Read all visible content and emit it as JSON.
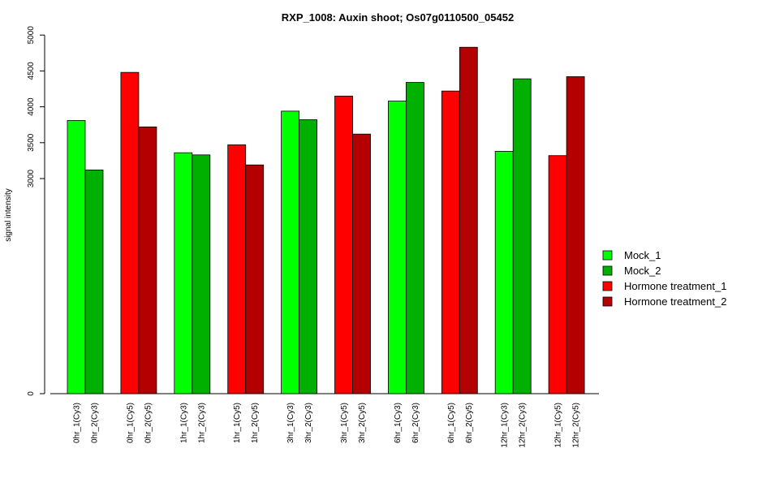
{
  "chart_data": {
    "type": "bar",
    "title": "RXP_1008: Auxin shoot; Os07g0110500_05452",
    "xlabel": "",
    "ylabel": "signal intensity",
    "y_scale": "nonlinear (compressed below 3000)",
    "y_ticks": [
      0,
      3000,
      3500,
      4000,
      4500,
      5000
    ],
    "ylim": [
      0,
      5000
    ],
    "grid": false,
    "legend_position": "right",
    "categories": [
      "0hr_1(Cy3)",
      "0hr_2(Cy3)",
      "0hr_1(Cy5)",
      "0hr_2(Cy5)",
      "1hr_1(Cy3)",
      "1hr_2(Cy3)",
      "1hr_1(Cy5)",
      "1hr_2(Cy5)",
      "3hr_1(Cy3)",
      "3hr_2(Cy3)",
      "3hr_1(Cy5)",
      "3hr_2(Cy5)",
      "6hr_1(Cy3)",
      "6hr_2(Cy3)",
      "6hr_1(Cy5)",
      "6hr_2(Cy5)",
      "12hr_1(Cy3)",
      "12hr_2(Cy3)",
      "12hr_1(Cy5)",
      "12hr_2(Cy5)"
    ],
    "values": [
      3810,
      3120,
      4480,
      3720,
      3360,
      3330,
      3470,
      3190,
      3940,
      3820,
      4150,
      3620,
      4080,
      4340,
      4220,
      4830,
      3380,
      4390,
      3320,
      4420
    ],
    "bar_series": [
      0,
      1,
      2,
      3,
      0,
      1,
      2,
      3,
      0,
      1,
      2,
      3,
      0,
      1,
      2,
      3,
      0,
      1,
      2,
      3
    ],
    "series": [
      {
        "name": "Mock_1",
        "color": "#00ff00"
      },
      {
        "name": "Mock_2",
        "color": "#00b000"
      },
      {
        "name": "Hormone treatment_1",
        "color": "#ff0000"
      },
      {
        "name": "Hormone treatment_2",
        "color": "#b40000"
      }
    ]
  }
}
